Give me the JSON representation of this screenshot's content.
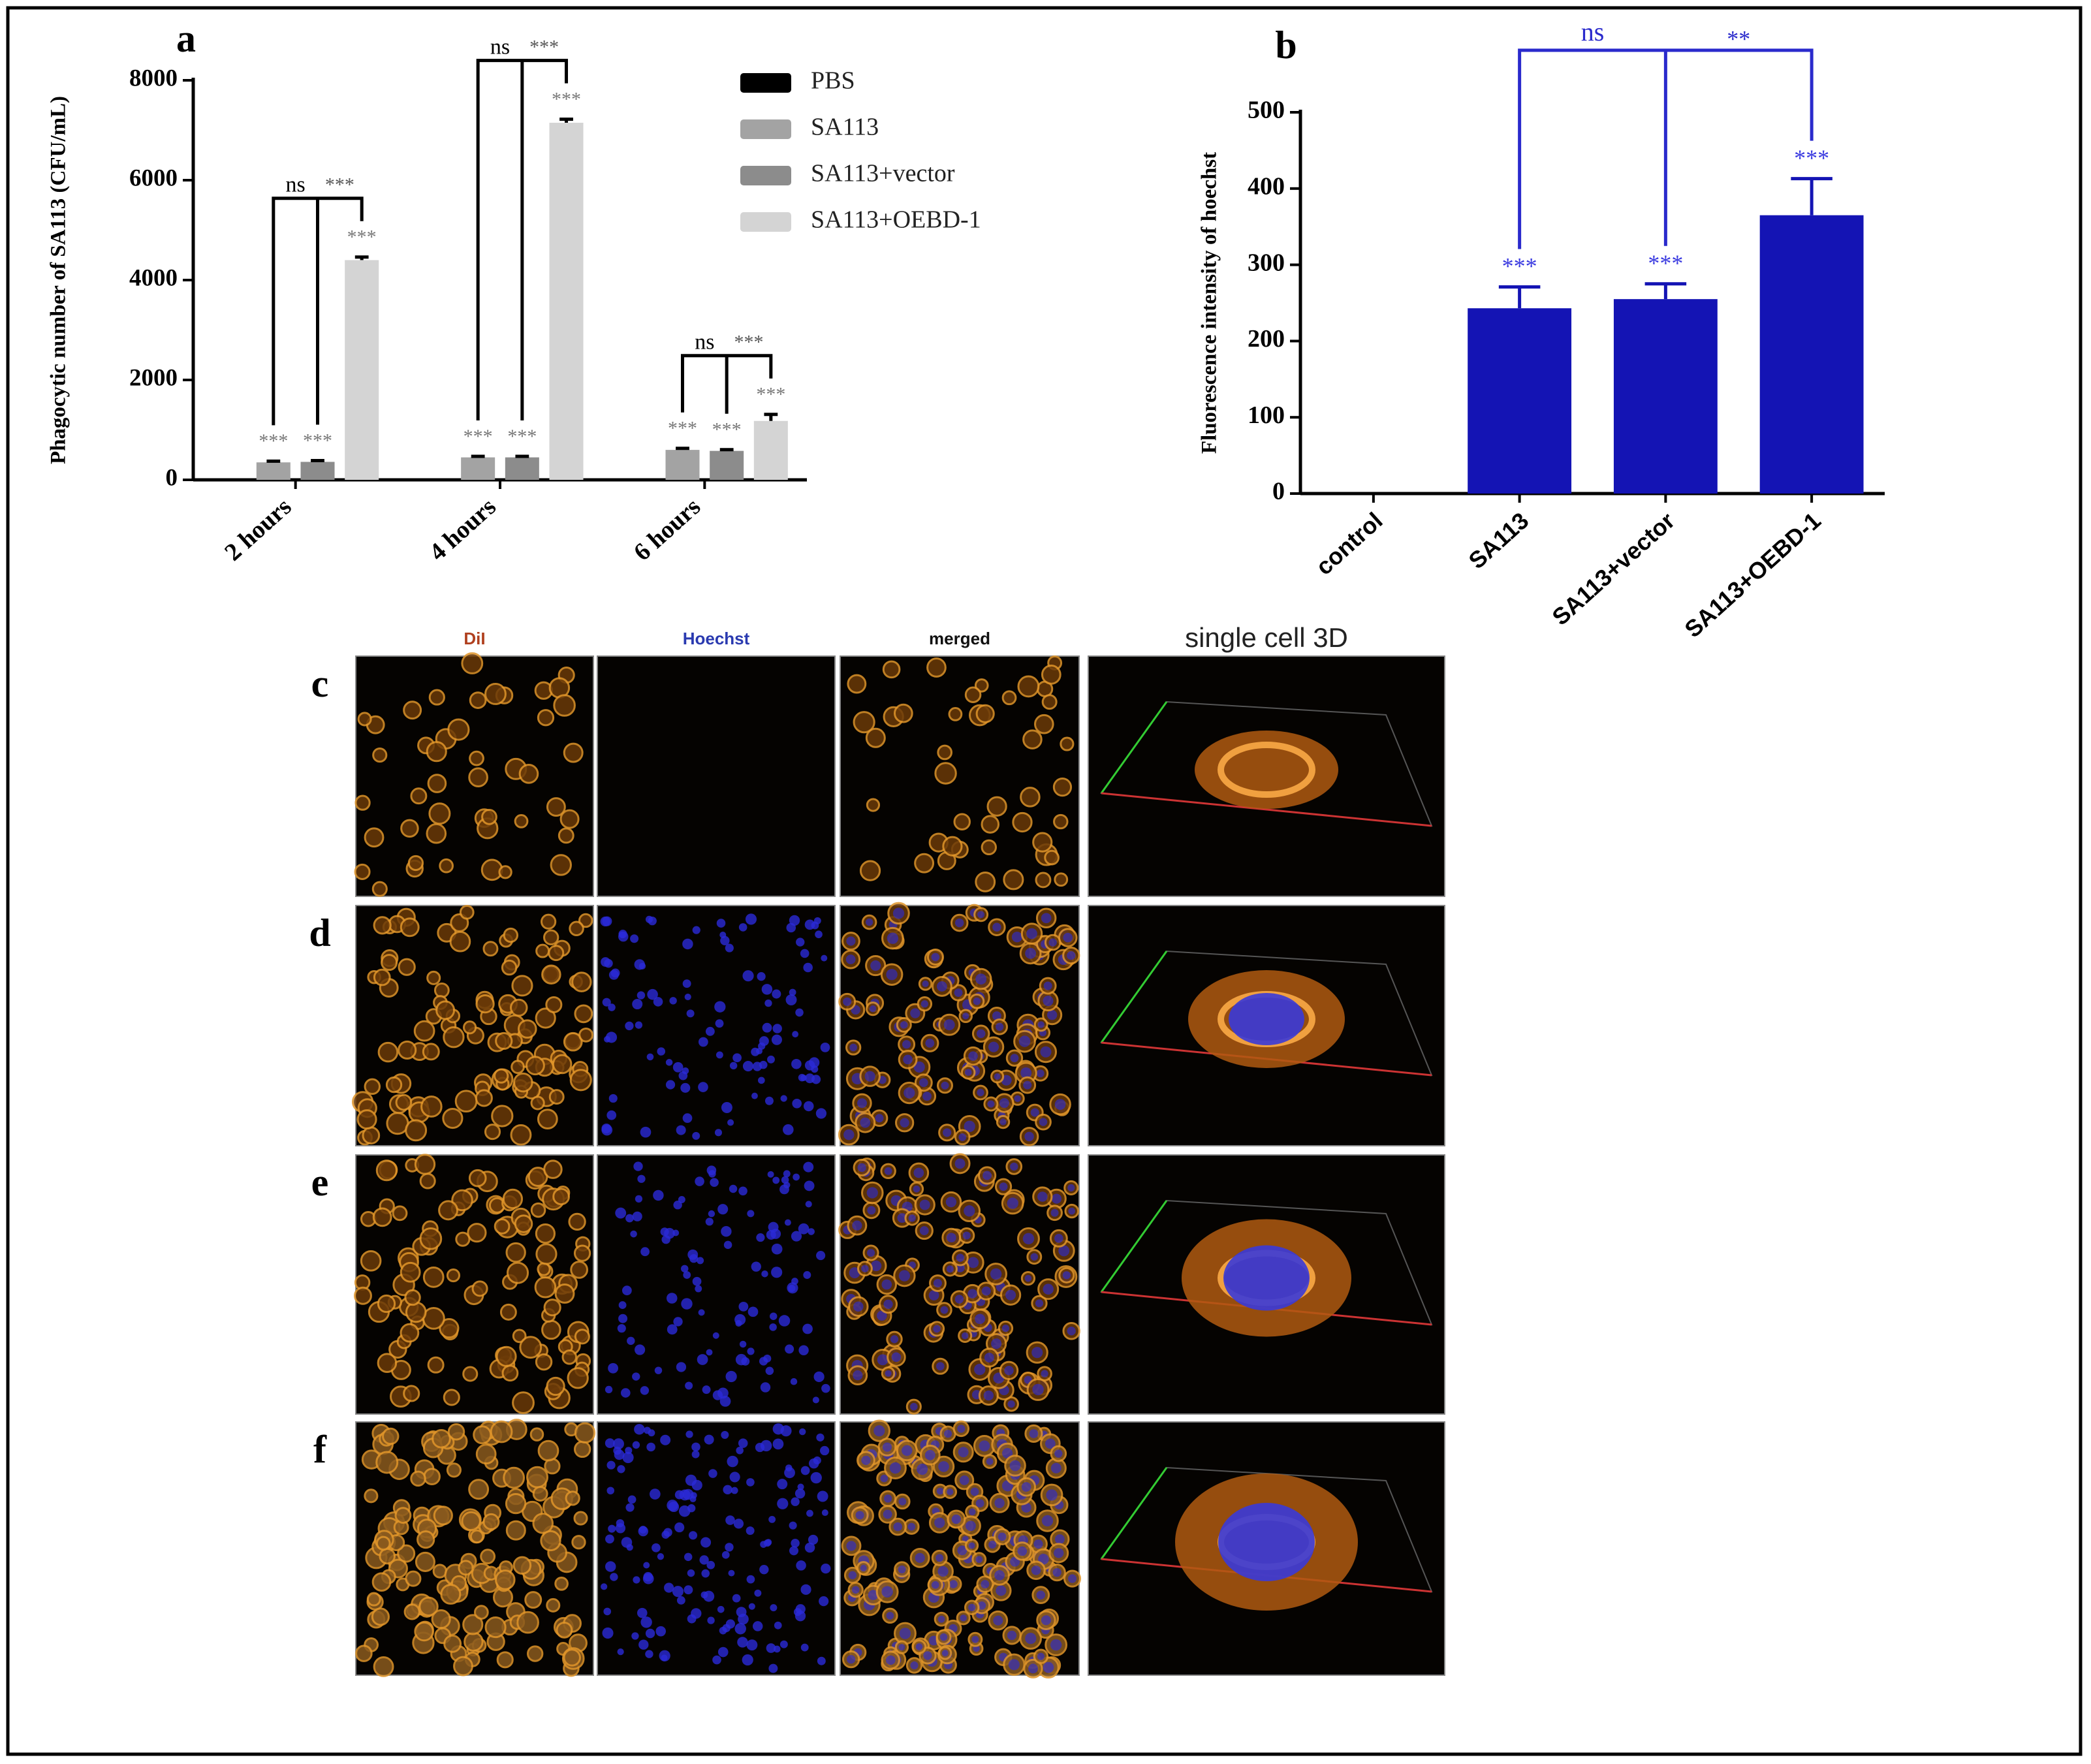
{
  "chart_data": [
    {
      "type": "bar",
      "label": "a",
      "y_label": "Phagocytic number of SA113 (CFU/mL)",
      "categories": [
        "2 hours",
        "4 hours",
        "6 hours"
      ],
      "series": [
        {
          "name": "PBS",
          "color": "#000000",
          "values": [
            0,
            0,
            0
          ]
        },
        {
          "name": "SA113",
          "color": "#a3a3a3",
          "values": [
            350,
            450,
            600
          ],
          "errors": [
            25,
            20,
            30
          ],
          "stars": [
            "***",
            "***",
            "***"
          ]
        },
        {
          "name": "SA113+vector",
          "color": "#8c8c8c",
          "values": [
            360,
            450,
            580
          ],
          "errors": [
            25,
            20,
            25
          ],
          "stars": [
            "***",
            "***",
            "***"
          ]
        },
        {
          "name": "SA113+OEBD-1",
          "color": "#d4d4d4",
          "values": [
            4400,
            7150,
            1180
          ],
          "errors": [
            60,
            70,
            130
          ],
          "stars": [
            "***",
            "***",
            "***"
          ]
        }
      ],
      "brackets": [
        [
          "ns",
          "***"
        ],
        [
          "ns",
          "***"
        ],
        [
          "ns",
          "***"
        ]
      ],
      "ylim": [
        0,
        8000
      ],
      "yticks": [
        0,
        2000,
        4000,
        6000,
        8000
      ],
      "grid": false,
      "legend": "right"
    },
    {
      "type": "bar",
      "label": "b",
      "y_label": "Fluorescence intensity of hoechst",
      "categories": [
        "control",
        "SA113",
        "SA113+vector",
        "SA113+OEBD-1"
      ],
      "values": [
        0,
        243,
        255,
        365
      ],
      "errors": [
        0,
        28,
        20,
        48
      ],
      "stars": [
        null,
        "***",
        "***",
        "***"
      ],
      "color": "#1414b4",
      "brackets": [
        "ns",
        "**"
      ],
      "ylim": [
        0,
        500
      ],
      "yticks": [
        0,
        100,
        200,
        300,
        400,
        500
      ],
      "grid": false
    }
  ],
  "image_grid": {
    "columns": [
      "DiI",
      "Hoechst",
      "merged",
      "single cell 3D"
    ],
    "rows": [
      "c",
      "d",
      "e",
      "f"
    ]
  }
}
